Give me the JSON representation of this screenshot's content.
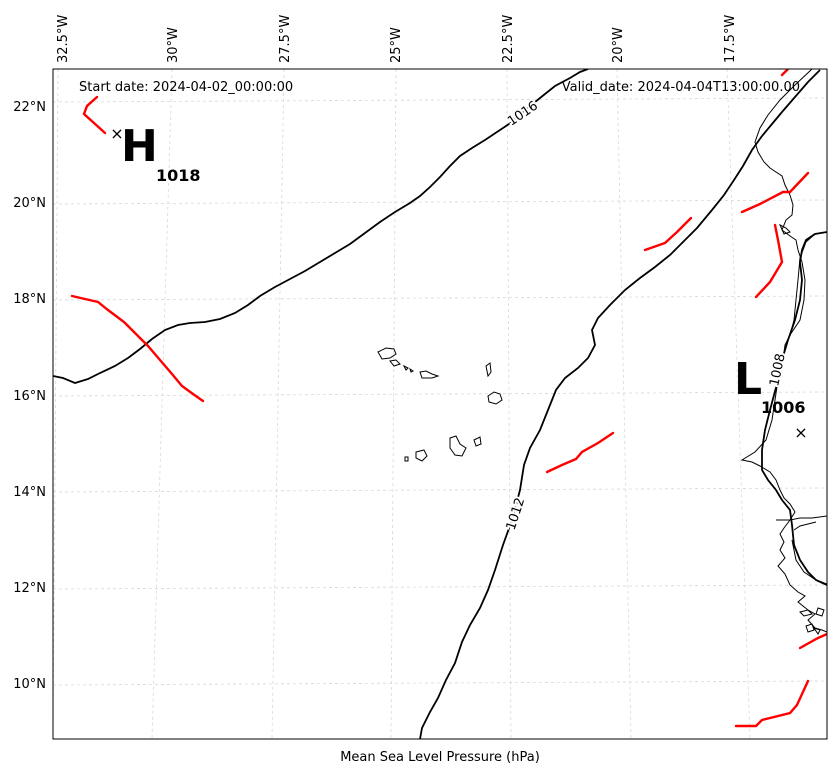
{
  "header": {
    "start_date": "Start date: 2024-04-02_00:00:00",
    "valid_date": "Valid_date: 2024-04-04T13:00:00.00"
  },
  "axis": {
    "xlabel": "Mean Sea Level Pressure (hPa)",
    "lon_ticks": [
      "32.5°W",
      "30°W",
      "27.5°W",
      "25°W",
      "22.5°W",
      "20°W",
      "17.5°W"
    ],
    "lat_ticks": [
      "22°N",
      "20°N",
      "18°N",
      "16°N",
      "14°N",
      "12°N",
      "10°N"
    ]
  },
  "pressure_centers": [
    {
      "type": "high",
      "letter": "H",
      "value": "1018"
    },
    {
      "type": "low",
      "letter": "L",
      "value": "1006"
    }
  ],
  "contours": [
    {
      "label": "1016"
    },
    {
      "label": "1012"
    },
    {
      "label": "1008"
    }
  ],
  "colors": {
    "contour": "#000000",
    "front": "#ff0000",
    "grid": "#cccccc",
    "coastline": "#000000"
  }
}
